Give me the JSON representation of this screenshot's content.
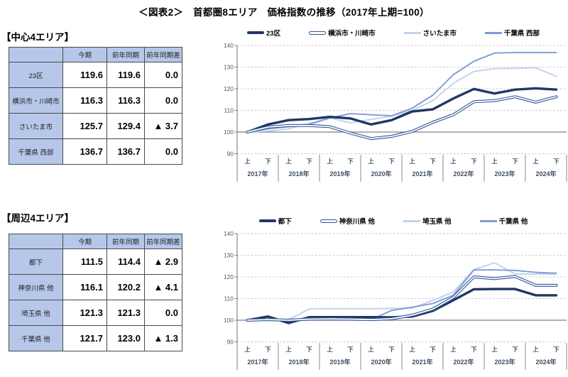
{
  "title": "＜図表2＞　首都圏8エリア　価格指数の推移（2017年上期=100）",
  "colors": {
    "navy_thick": "#1f3864",
    "navy_outline": "#2e5597",
    "pale_blue": "#c2d2ec",
    "steel_blue": "#7d9bd3",
    "table_header_bg": "#b6c7e9",
    "grid_dashed": "#c9c9c9",
    "axis_gray": "#7f7f7f",
    "axis_text": "#3f4e63",
    "negative_mark": "#000000"
  },
  "sections": [
    {
      "heading": "【中心4エリア】",
      "table": {
        "headers": [
          "",
          "今期",
          "前年同期",
          "前年同期差"
        ],
        "rows": [
          {
            "label": "23区",
            "current": "119.6",
            "prev_year": "119.6",
            "diff": "0.0"
          },
          {
            "label": "横浜市・川崎市",
            "current": "116.3",
            "prev_year": "116.3",
            "diff": "0.0"
          },
          {
            "label": "さいたま市",
            "current": "125.7",
            "prev_year": "129.4",
            "diff": "▲ 3.7"
          },
          {
            "label": "千葉県 西部",
            "current": "136.7",
            "prev_year": "136.7",
            "diff": "0.0"
          }
        ]
      }
    },
    {
      "heading": "【周辺4エリア】",
      "table": {
        "headers": [
          "",
          "今期",
          "前年同期",
          "前年同期差"
        ],
        "rows": [
          {
            "label": "都下",
            "current": "111.5",
            "prev_year": "114.4",
            "diff": "▲ 2.9"
          },
          {
            "label": "神奈川県 他",
            "current": "116.1",
            "prev_year": "120.2",
            "diff": "▲ 4.1"
          },
          {
            "label": "埼玉県 他",
            "current": "121.3",
            "prev_year": "121.3",
            "diff": "0.0"
          },
          {
            "label": "千葉県 他",
            "current": "121.7",
            "prev_year": "123.0",
            "diff": "▲ 1.3"
          }
        ]
      }
    }
  ],
  "chart_data": [
    {
      "type": "line",
      "ylim": [
        90,
        140
      ],
      "ytick_step": 10,
      "baseline": 100,
      "grid": "dashed-horizontal",
      "legend_position": "top",
      "x_years": [
        "2017年",
        "2018年",
        "2019年",
        "2020年",
        "2021年",
        "2022年",
        "2023年",
        "2024年"
      ],
      "half_labels": [
        "上",
        "下"
      ],
      "series": [
        {
          "name": "23区",
          "style": "thick",
          "color": "#1f3864",
          "values": [
            100,
            103.5,
            105.5,
            106,
            107,
            106.3,
            103.5,
            105.5,
            109.5,
            110.5,
            115.5,
            119.9,
            117.8,
            119.6,
            120.2,
            119.6
          ]
        },
        {
          "name": "横浜市・川崎市",
          "style": "outline",
          "color": "#2e5597",
          "values": [
            100,
            102.3,
            103,
            103,
            102.5,
            99.5,
            97,
            98,
            100.3,
            104.5,
            108,
            114,
            114.5,
            116.3,
            113.8,
            116.3
          ]
        },
        {
          "name": "さいたま市",
          "style": "normal",
          "color": "#c2d2ec",
          "values": [
            100,
            100.5,
            101.5,
            104,
            106.5,
            104.3,
            105.8,
            107.3,
            110,
            114.5,
            122.5,
            128,
            129.3,
            129.4,
            129.7,
            125.7
          ]
        },
        {
          "name": "千葉県 西部",
          "style": "normal",
          "color": "#7d9bd3",
          "values": [
            100,
            101.5,
            102.5,
            103.5,
            106.5,
            108.5,
            108,
            107.5,
            111,
            117,
            126.5,
            132.7,
            136.5,
            136.7,
            136.7,
            136.7
          ]
        }
      ]
    },
    {
      "type": "line",
      "ylim": [
        90,
        140
      ],
      "ytick_step": 10,
      "baseline": 100,
      "grid": "dashed-horizontal",
      "legend_position": "top",
      "x_years": [
        "2017年",
        "2018年",
        "2019年",
        "2020年",
        "2021年",
        "2022年",
        "2023年",
        "2024年"
      ],
      "half_labels": [
        "上",
        "下"
      ],
      "series": [
        {
          "name": "都下",
          "style": "thick",
          "color": "#1f3864",
          "values": [
            100,
            101.7,
            98.7,
            101.4,
            101.4,
            101.4,
            101.4,
            101.3,
            101.7,
            104.3,
            109.2,
            114.3,
            114.4,
            114.4,
            111.5,
            111.5
          ]
        },
        {
          "name": "神奈川県 他",
          "style": "outline",
          "color": "#2e5597",
          "values": [
            100,
            100.3,
            100,
            100.5,
            100.6,
            100.5,
            100.3,
            100.7,
            102.3,
            105.1,
            110.5,
            120,
            119.2,
            120.2,
            116.1,
            116.1
          ]
        },
        {
          "name": "埼玉県 他",
          "style": "normal",
          "color": "#c2d2ec",
          "values": [
            100,
            100,
            100.2,
            105.2,
            105.3,
            105.3,
            105.3,
            105.4,
            105.6,
            109.1,
            113,
            123.4,
            126.5,
            121.3,
            121.3,
            121.3
          ]
        },
        {
          "name": "千葉県 他",
          "style": "normal",
          "color": "#7d9bd3",
          "values": [
            100,
            100,
            99.8,
            100.3,
            100.3,
            100.2,
            100.2,
            104.5,
            106,
            107.7,
            111.5,
            123.2,
            123.2,
            123,
            122.1,
            121.7
          ]
        }
      ]
    }
  ]
}
